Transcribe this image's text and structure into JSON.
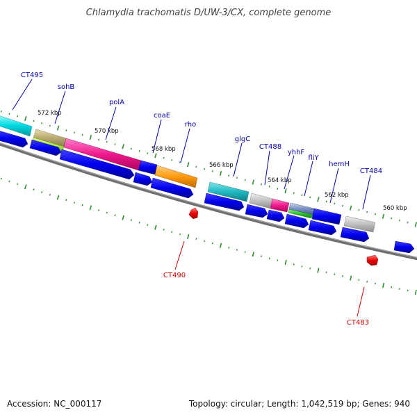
{
  "title": "Chlamydia trachomatis D/UW-3/CX, complete genome",
  "footer": {
    "accession": "Accession: NC_000117",
    "summary": "Topology: circular; Length: 1,042,519 bp; Genes: 940"
  },
  "colors": {
    "label_forward": "#0000aa",
    "label_reverse": "#cc0000",
    "tick": "#2e8b2e",
    "backbone": "#808080"
  },
  "scale_labels": [
    "572 kbp",
    "570 kbp",
    "568 kbp",
    "566 kbp",
    "564 kbp",
    "562 kbp",
    "560 kbp"
  ],
  "gene_labels_forward": [
    "CT495",
    "sohB",
    "polA",
    "coaE",
    "rho",
    "glgC",
    "CT488",
    "yhhF",
    "fliY",
    "hemH",
    "CT484"
  ],
  "gene_labels_reverse": [
    "CT490",
    "CT483"
  ]
}
